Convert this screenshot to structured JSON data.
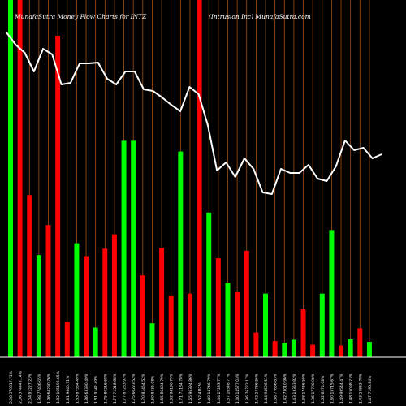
{
  "chart_data": {
    "type": "bar",
    "title_left": "MunafaSutra  Money Flow  Charts for INTZ",
    "title_right": "(Intrusion  Inc) MunafaSutra.com",
    "ylim": [
      0,
      100
    ],
    "colors": {
      "background": "#000000",
      "up": "#00ff00",
      "down": "#ff0000",
      "price_line": "#ffffff",
      "grid": "#a0521e",
      "axis": "#ffffff"
    },
    "bars": [
      {
        "label": "2.08 370817.71%",
        "value": 100,
        "color": "up"
      },
      {
        "label": "2.06 374448.14%",
        "value": 100,
        "color": "down"
      },
      {
        "label": "2.04 91227.23%",
        "value": 45.4,
        "color": "down"
      },
      {
        "label": "1.98 77406.05%",
        "value": 28.6,
        "color": "up"
      },
      {
        "label": "1.96 64290.76%",
        "value": 37,
        "color": "down"
      },
      {
        "label": "1.82 165196.65%",
        "value": 90,
        "color": "down"
      },
      {
        "label": "1.81 9840.71%",
        "value": 9.9,
        "color": "down"
      },
      {
        "label": "1.83 87584.49%",
        "value": 31.9,
        "color": "up"
      },
      {
        "label": "1.86 63390.49%",
        "value": 28.3,
        "color": "down"
      },
      {
        "label": "1.81 9142.49%",
        "value": 8.3,
        "color": "up"
      },
      {
        "label": "1.75 80216.68%",
        "value": 30.4,
        "color": "down"
      },
      {
        "label": "1.77 71518.68%",
        "value": 34.4,
        "color": "down"
      },
      {
        "label": "1.77 87263.92%",
        "value": 60.6,
        "color": "up"
      },
      {
        "label": "1.75 60223.52%",
        "value": 60.6,
        "color": "up"
      },
      {
        "label": "1.70 81454.52%",
        "value": 22.9,
        "color": "down"
      },
      {
        "label": "1.69 8436.08%",
        "value": 9.5,
        "color": "up"
      },
      {
        "label": "1.65 86484.79%",
        "value": 30.6,
        "color": "down"
      },
      {
        "label": "1.62 94196.79%",
        "value": 17.3,
        "color": "down"
      },
      {
        "label": "1.71 71184.70%",
        "value": 57.6,
        "color": "up"
      },
      {
        "label": "1.65 96394.86%",
        "value": 17.8,
        "color": "down"
      },
      {
        "label": "1.52 4.82%",
        "value": 100,
        "color": "down"
      },
      {
        "label": "1.40 14746.79%",
        "value": 40.5,
        "color": "up"
      },
      {
        "label": "1.44 17233.77%",
        "value": 27.7,
        "color": "down"
      },
      {
        "label": "1.37 16548.77%",
        "value": 20.9,
        "color": "up"
      },
      {
        "label": "1.40 14577.03%",
        "value": 18.4,
        "color": "down"
      },
      {
        "label": "1.36 76722.17%",
        "value": 29.8,
        "color": "down"
      },
      {
        "label": "1.42 24786.56%",
        "value": 6.9,
        "color": "down"
      },
      {
        "label": "1.44 94526.51%",
        "value": 17.8,
        "color": "up"
      },
      {
        "label": "1.38 77636.83%",
        "value": 4.5,
        "color": "down"
      },
      {
        "label": "1.42 73010.96%",
        "value": 4,
        "color": "up"
      },
      {
        "label": "1.43 13353.82%",
        "value": 4.9,
        "color": "up"
      },
      {
        "label": "1.38 17436.59%",
        "value": 13.4,
        "color": "down"
      },
      {
        "label": "1.36 17790.90%",
        "value": 3.5,
        "color": "down"
      },
      {
        "label": "1.52 6274.08%",
        "value": 17.8,
        "color": "up"
      },
      {
        "label": "1.60 15715.67%",
        "value": 35.6,
        "color": "up"
      },
      {
        "label": "1.49 99544.47%",
        "value": 3.3,
        "color": "down"
      },
      {
        "label": "1.48 15098.23%",
        "value": 5,
        "color": "up"
      },
      {
        "label": "1.43 24883.78%",
        "value": 8.1,
        "color": "down"
      },
      {
        "label": "1.47 7196.84%",
        "value": 4.3,
        "color": "up"
      }
    ],
    "price_line": [
      40,
      55,
      65,
      88,
      60,
      67,
      104,
      102,
      78,
      78,
      77,
      97,
      104,
      88,
      88,
      110,
      112,
      120,
      129,
      137,
      107,
      116,
      154,
      210,
      200,
      218,
      195,
      208,
      237,
      239,
      208,
      213,
      213,
      203,
      220,
      223,
      205,
      173,
      185,
      182,
      195,
      190
    ]
  }
}
